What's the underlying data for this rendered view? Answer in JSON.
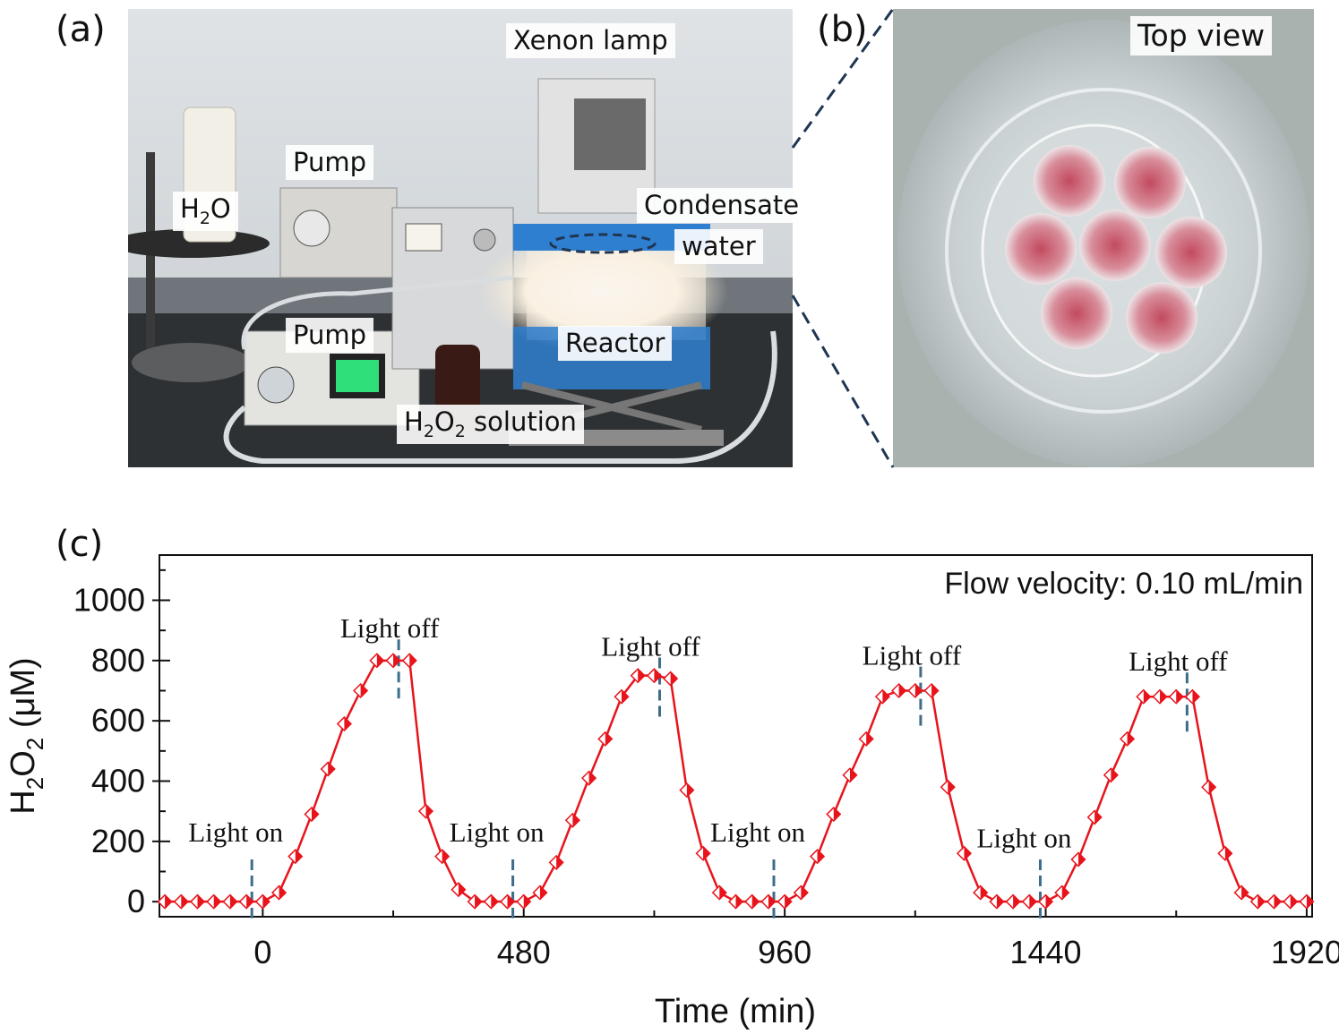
{
  "panels": {
    "a": {
      "letter": "(a)",
      "labels": {
        "xenon_lamp": "Xenon lamp",
        "pump_top": "Pump",
        "h2o": "H",
        "h2o_sub": "2",
        "h2o_tail": "O",
        "condensate_1": "Condensate",
        "condensate_2": "water",
        "pump_bottom": "Pump",
        "reactor": "Reactor",
        "h2o2_h": "H",
        "h2o2_2a": "2",
        "h2o2_o": "O",
        "h2o2_2b": "2",
        "h2o2_tail": " solution"
      }
    },
    "b": {
      "letter": "(b)",
      "labels": {
        "top_view": "Top view"
      }
    },
    "c": {
      "letter": "(c)"
    }
  },
  "chart_data": {
    "type": "line",
    "title": "",
    "xlabel": "Time (min)",
    "ylabel_parts": {
      "h": "H",
      "s1": "2",
      "o": "O",
      "s2": "2",
      "unit": " (μM)"
    },
    "xlim": [
      -190,
      1930
    ],
    "ylim": [
      -50,
      1150
    ],
    "xticks": [
      0,
      480,
      960,
      1440,
      1920
    ],
    "yticks": [
      0,
      200,
      400,
      600,
      800,
      1000
    ],
    "series_color": "#e8141c",
    "annotation_top_right": "Flow velocity: 0.10 mL/min",
    "series": [
      {
        "x": [
          -180,
          -150,
          -120,
          -90,
          -60,
          -30,
          0,
          30,
          60,
          90,
          120,
          150,
          180,
          210,
          240,
          270,
          300,
          330,
          360,
          390,
          420,
          450,
          480,
          510,
          540,
          570,
          600,
          630,
          660,
          690,
          720,
          750,
          780,
          810,
          840,
          870,
          900,
          930,
          960,
          990,
          1020,
          1050,
          1080,
          1110,
          1140,
          1170,
          1200,
          1230,
          1260,
          1290,
          1320,
          1350,
          1380,
          1410,
          1440,
          1470,
          1500,
          1530,
          1560,
          1590,
          1620,
          1650,
          1680,
          1710,
          1740,
          1770,
          1800,
          1830,
          1860,
          1890,
          1920
        ],
        "y": [
          0,
          0,
          0,
          0,
          0,
          0,
          0,
          30,
          150,
          290,
          440,
          590,
          700,
          800,
          800,
          800,
          300,
          150,
          40,
          0,
          0,
          0,
          0,
          30,
          130,
          270,
          410,
          540,
          680,
          750,
          750,
          740,
          370,
          160,
          30,
          0,
          0,
          0,
          0,
          30,
          150,
          290,
          420,
          540,
          680,
          700,
          700,
          700,
          380,
          160,
          30,
          0,
          0,
          0,
          0,
          30,
          140,
          280,
          420,
          540,
          680,
          680,
          680,
          680,
          380,
          160,
          30,
          0,
          0,
          0,
          0
        ]
      }
    ],
    "light_on": {
      "label": "Light on",
      "x": [
        -20,
        460,
        940,
        1430
      ],
      "label_y": [
        200,
        200,
        200,
        180
      ]
    },
    "light_off": {
      "label": "Light off",
      "x": [
        250,
        730,
        1210,
        1700
      ],
      "label_y": [
        900,
        840,
        810,
        790
      ]
    }
  }
}
